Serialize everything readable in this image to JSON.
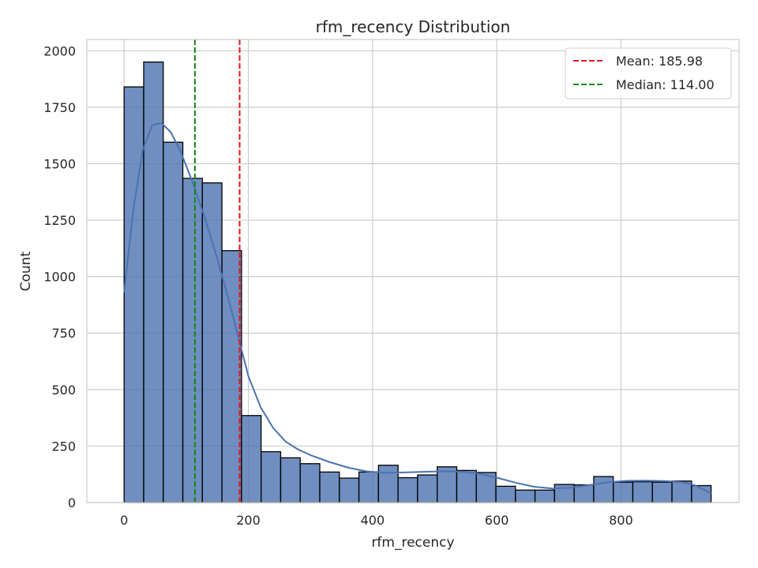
{
  "chart_data": {
    "type": "bar",
    "title": "rfm_recency Distribution",
    "xlabel": "rfm_recency",
    "ylabel": "Count",
    "xlim": [
      -60,
      990
    ],
    "ylim": [
      0,
      2050
    ],
    "xticks": [
      0,
      200,
      400,
      600,
      800
    ],
    "yticks": [
      0,
      250,
      500,
      750,
      1000,
      1250,
      1500,
      1750,
      2000
    ],
    "grid": true,
    "legend_position": "top-right",
    "bar_color": "#4c72b0",
    "bin_start": 0,
    "bin_width": 31.5,
    "values": [
      1840,
      1950,
      1595,
      1435,
      1415,
      1115,
      385,
      225,
      198,
      172,
      135,
      108,
      135,
      165,
      110,
      122,
      158,
      142,
      133,
      72,
      55,
      55,
      80,
      78,
      115,
      90,
      92,
      90,
      95,
      75
    ],
    "kde": {
      "x": [
        0,
        15,
        30,
        45,
        60,
        75,
        90,
        110,
        130,
        150,
        170,
        185,
        200,
        220,
        240,
        260,
        280,
        300,
        330,
        360,
        390,
        420,
        450,
        480,
        510,
        540,
        570,
        600,
        630,
        660,
        690,
        720,
        750,
        780,
        810,
        840,
        870,
        900,
        920,
        945
      ],
      "y": [
        930,
        1300,
        1560,
        1670,
        1680,
        1640,
        1560,
        1420,
        1260,
        1080,
        880,
        720,
        560,
        420,
        330,
        270,
        235,
        210,
        180,
        155,
        138,
        132,
        133,
        136,
        138,
        137,
        128,
        110,
        88,
        70,
        62,
        66,
        78,
        90,
        96,
        97,
        95,
        90,
        75,
        40
      ]
    },
    "lines": [
      {
        "label": "Mean: 185.98",
        "x": 185.98,
        "color": "#e6141e"
      },
      {
        "label": "Median: 114.00",
        "x": 114.0,
        "color": "#128712"
      }
    ]
  }
}
